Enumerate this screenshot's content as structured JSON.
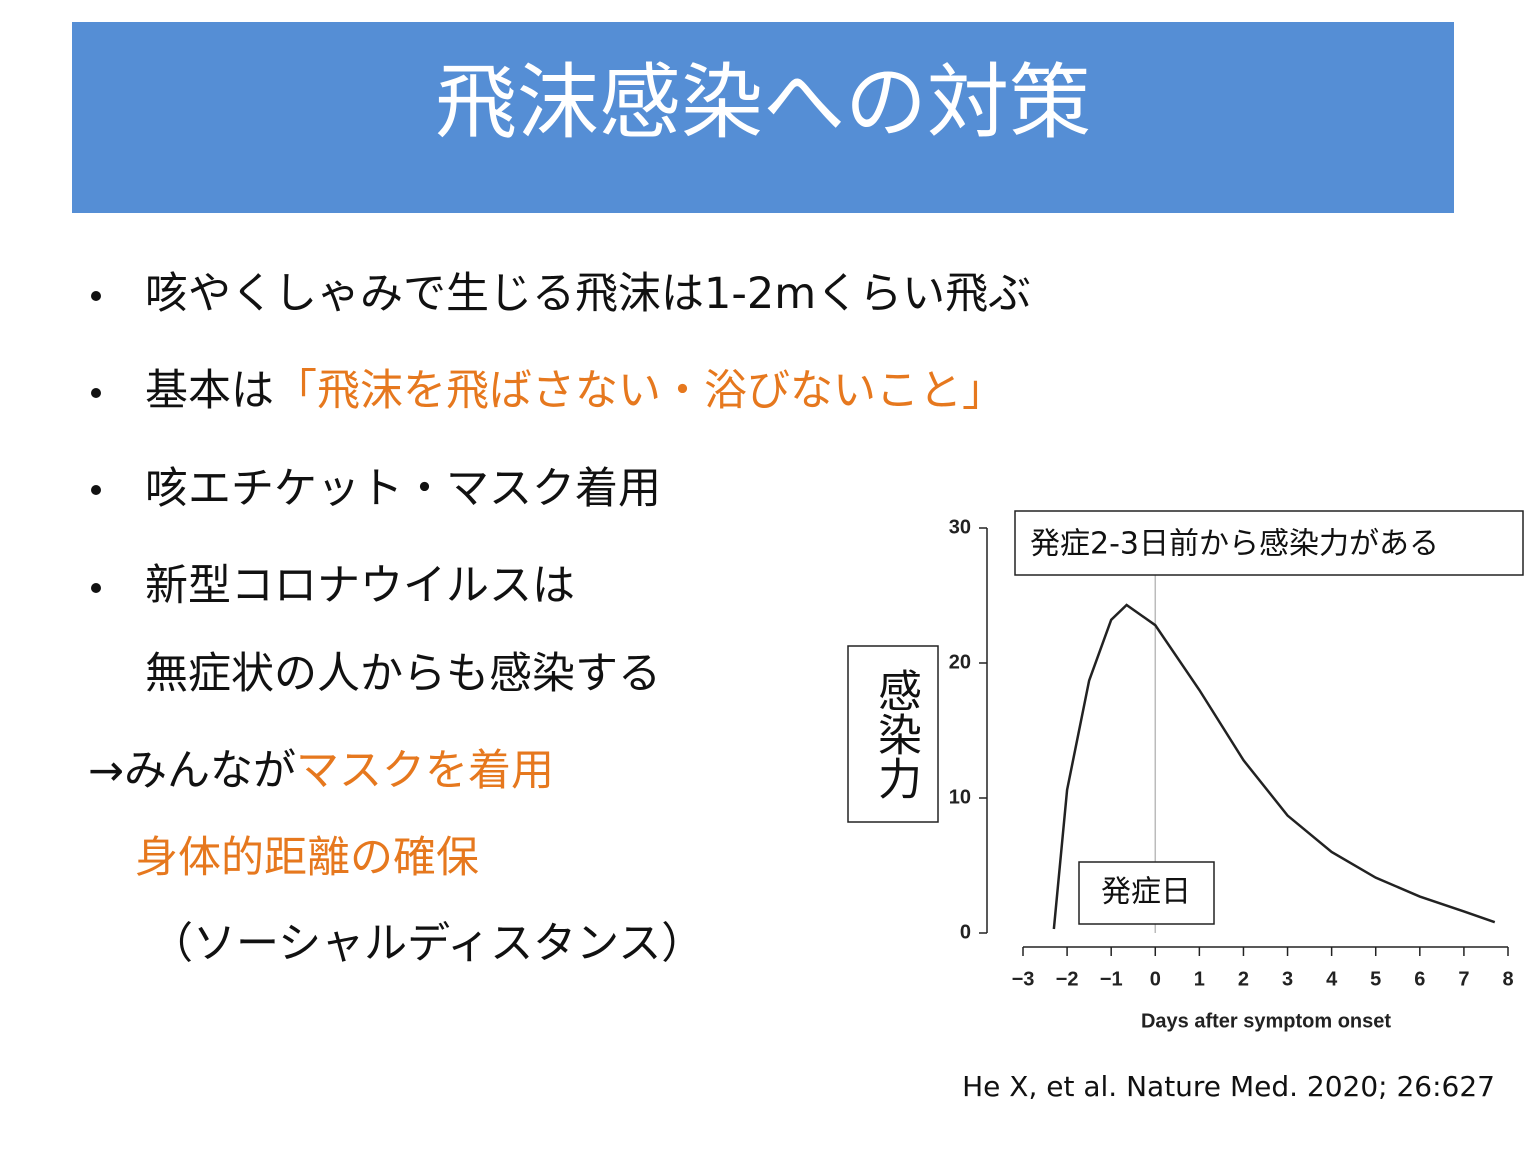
{
  "header": {
    "title": "飛沫感染への対策"
  },
  "body": {
    "lines": [
      {
        "text": "咳やくしゃみで生じる飛沫は1-2mくらい飛ぶ"
      },
      {
        "text": "基本は",
        "highlight": "「飛沫を飛ばさない・浴びないこと」"
      },
      {
        "text": "咳エチケット・マスク着用"
      },
      {
        "text": "新型コロナウイルスは"
      },
      {
        "text": "無症状の人からも感染する"
      },
      {
        "text": "→みんなが",
        "highlight": "マスクを着用"
      },
      {
        "highlight": "身体的距離の確保"
      },
      {
        "text": "（ソーシャルディスタンス）"
      }
    ]
  },
  "chart_data": {
    "type": "line",
    "x": [
      -2.3,
      -2,
      -1.5,
      -1,
      -0.65,
      0,
      1,
      2,
      3,
      4,
      5,
      6,
      7,
      7.7
    ],
    "values": [
      0.3,
      10.6,
      18.7,
      23.2,
      24.3,
      22.8,
      18,
      12.8,
      8.7,
      6,
      4.1,
      2.7,
      1.6,
      0.8
    ],
    "color": "#222222",
    "xlim": [
      -3,
      8
    ],
    "xticks": [
      {
        "value": -3,
        "label": "−3"
      },
      {
        "value": -2,
        "label": "−2"
      },
      {
        "value": -1,
        "label": "−1"
      },
      0,
      1,
      2,
      3,
      4,
      5,
      6,
      7,
      8
    ],
    "ylim": [
      0,
      30
    ],
    "yticks": [
      0,
      10,
      20,
      30
    ],
    "x_label": "Days after symptom onset",
    "y_label": "感染力",
    "vline": 0,
    "annotations": [
      "発症2-3日前から感染力がある",
      "発症日"
    ]
  },
  "citation": "He X, et al. Nature Med. 2020; 26:627"
}
